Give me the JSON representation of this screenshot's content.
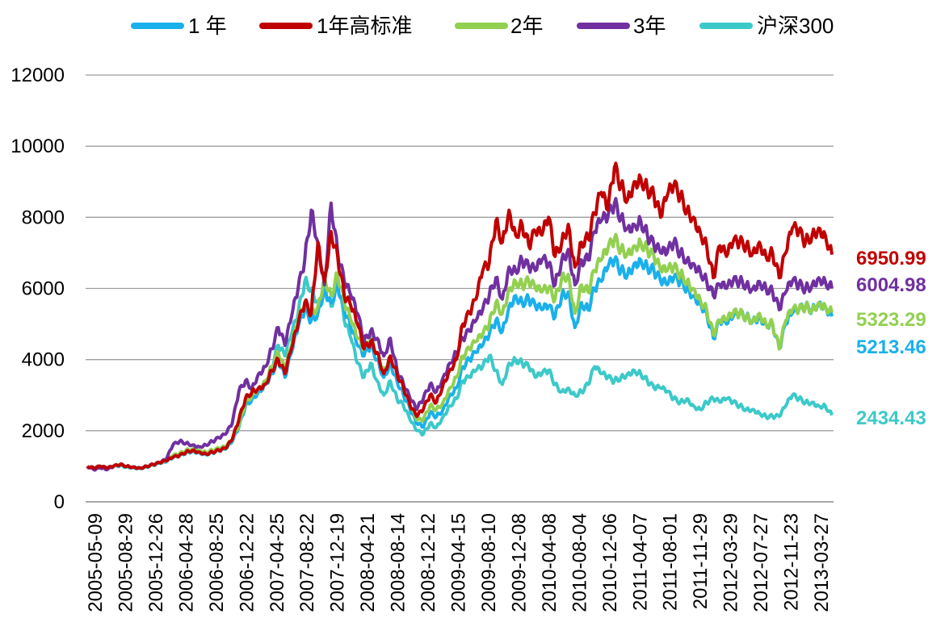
{
  "chart_data": {
    "type": "line",
    "title": "",
    "xlabel": "",
    "ylabel": "",
    "ylim": [
      0,
      12000
    ],
    "yticks": [
      "0",
      "2000",
      "4000",
      "6000",
      "8000",
      "10000",
      "12000"
    ],
    "grid": true,
    "legend_position": "top",
    "xticks": [
      "2005-05-09",
      "2005-08-29",
      "2005-12-26",
      "2006-04-28",
      "2006-08-25",
      "2006-12-22",
      "2007-04-25",
      "2007-08-22",
      "2007-12-19",
      "2008-04-21",
      "2008-08-14",
      "2008-12-12",
      "2009-04-15",
      "2009-08-10",
      "2009-12-08",
      "2010-04-08",
      "2010-08-04",
      "2010-12-06",
      "2011-04-07",
      "2011-08-01",
      "2011-11-29",
      "2012-03-29",
      "2012-07-27",
      "2012-11-23",
      "2013-03-27"
    ],
    "series": [
      {
        "name": "1 年",
        "color": "#1ab0ec",
        "end_label": "5213.46",
        "values": [
          1000,
          950,
          1000,
          950,
          1000,
          1050,
          1000,
          980,
          950,
          1000,
          1050,
          1100,
          1150,
          1250,
          1300,
          1400,
          1450,
          1400,
          1350,
          1400,
          1450,
          1500,
          1700,
          2100,
          2700,
          2900,
          3100,
          3300,
          3600,
          4000,
          3500,
          4200,
          4900,
          5400,
          5100,
          5300,
          6000,
          5600,
          6100,
          5400,
          4900,
          4400,
          4100,
          4400,
          4000,
          3500,
          3900,
          3400,
          3000,
          2600,
          2200,
          2100,
          2500,
          2400,
          2600,
          3000,
          3200,
          3800,
          4000,
          4200,
          4400,
          4700,
          5100,
          4800,
          5500,
          5800,
          5600,
          5700,
          5500,
          5400,
          5500,
          5200,
          5800,
          5900,
          4900,
          5600,
          5400,
          6000,
          6200,
          6600,
          6800,
          6500,
          6400,
          6700,
          6800,
          6600,
          6500,
          6200,
          6100,
          6300,
          6200,
          6000,
          5800,
          5600,
          5300,
          4600,
          5100,
          5000,
          5200,
          5300,
          5200,
          5100,
          5200,
          5000,
          5000,
          4300,
          5000,
          5300,
          5400,
          5500,
          5400,
          5600,
          5500,
          5213.46
        ]
      },
      {
        "name": "1年高标准",
        "color": "#c00000",
        "end_label": "6950.99",
        "values": [
          1000,
          950,
          1000,
          950,
          1000,
          1050,
          1000,
          980,
          950,
          1000,
          1050,
          1100,
          1150,
          1250,
          1300,
          1400,
          1450,
          1400,
          1350,
          1400,
          1450,
          1500,
          1750,
          2300,
          2900,
          3100,
          3200,
          3300,
          3700,
          4000,
          3600,
          4300,
          5000,
          5600,
          5300,
          7300,
          6200,
          7600,
          6900,
          5800,
          5500,
          5000,
          4300,
          4500,
          4200,
          3600,
          4100,
          3600,
          3200,
          2700,
          2400,
          2600,
          3000,
          2800,
          3300,
          3700,
          4000,
          5000,
          5300,
          5700,
          6500,
          6700,
          7900,
          7300,
          8200,
          7500,
          7800,
          7200,
          7600,
          7500,
          8000,
          6900,
          7300,
          7800,
          6600,
          7300,
          7400,
          8100,
          8700,
          8200,
          9400,
          8900,
          8500,
          9000,
          9100,
          8800,
          8600,
          8000,
          8600,
          8900,
          8600,
          8200,
          8000,
          7600,
          7200,
          6300,
          7200,
          6900,
          7300,
          7300,
          7200,
          7000,
          7300,
          6900,
          7000,
          6300,
          7000,
          7700,
          7600,
          7300,
          7500,
          7700,
          7500,
          6950.99
        ]
      },
      {
        "name": "2年",
        "color": "#92d050",
        "end_label": "5323.29",
        "values": [
          1000,
          950,
          1000,
          950,
          1000,
          1050,
          1000,
          980,
          950,
          1000,
          1050,
          1100,
          1150,
          1300,
          1350,
          1450,
          1500,
          1450,
          1400,
          1450,
          1500,
          1550,
          1750,
          2150,
          2800,
          3000,
          3200,
          3400,
          3800,
          4200,
          3700,
          4400,
          5100,
          5600,
          5300,
          5500,
          6300,
          5800,
          6400,
          5600,
          5100,
          4600,
          4300,
          4600,
          4200,
          3700,
          4100,
          3600,
          3200,
          2700,
          2300,
          2300,
          2700,
          2600,
          2800,
          3200,
          3500,
          4100,
          4300,
          4500,
          4700,
          5000,
          5600,
          5300,
          6000,
          6200,
          6100,
          6200,
          6000,
          5900,
          6000,
          5700,
          6300,
          6400,
          5300,
          6100,
          5900,
          6500,
          6800,
          7100,
          7400,
          7100,
          7000,
          7200,
          7300,
          7100,
          6900,
          6500,
          6500,
          6600,
          6400,
          6200,
          6000,
          5700,
          5400,
          4700,
          5100,
          5100,
          5300,
          5300,
          5200,
          5100,
          5300,
          5000,
          5000,
          4300,
          5100,
          5400,
          5400,
          5500,
          5400,
          5600,
          5500,
          5323.29
        ]
      },
      {
        "name": "3年",
        "color": "#7030a0",
        "end_label": "6004.98",
        "values": [
          1000,
          900,
          950,
          900,
          1000,
          1050,
          1000,
          980,
          950,
          1000,
          1050,
          1100,
          1200,
          1600,
          1700,
          1650,
          1600,
          1550,
          1600,
          1700,
          1800,
          1900,
          2200,
          3100,
          3400,
          3200,
          3600,
          3800,
          4300,
          4900,
          4400,
          5200,
          6000,
          6800,
          8200,
          7300,
          6100,
          8400,
          7000,
          6200,
          5800,
          5300,
          4500,
          4800,
          4600,
          4100,
          4600,
          3700,
          3300,
          2900,
          2600,
          2900,
          3300,
          3100,
          3500,
          3900,
          4200,
          4600,
          4800,
          5100,
          5400,
          5800,
          6300,
          5700,
          6600,
          6500,
          6800,
          6600,
          6500,
          6800,
          6700,
          6100,
          6800,
          7100,
          6100,
          6800,
          6800,
          7600,
          7900,
          8000,
          8400,
          8000,
          7700,
          7800,
          7900,
          7500,
          7200,
          7000,
          7000,
          7300,
          7000,
          6800,
          6700,
          6500,
          6200,
          5800,
          6100,
          6000,
          6200,
          6200,
          6100,
          6000,
          6200,
          6000,
          5900,
          5400,
          5900,
          6200,
          6100,
          6000,
          6100,
          6300,
          6200,
          6004.98
        ]
      },
      {
        "name": "沪深300",
        "color": "#3cc9c9",
        "end_label": "2434.43",
        "values": [
          1000,
          950,
          980,
          940,
          1000,
          1020,
          980,
          960,
          940,
          980,
          1030,
          1080,
          1120,
          1250,
          1300,
          1380,
          1420,
          1380,
          1330,
          1380,
          1430,
          1480,
          1700,
          2100,
          2700,
          2900,
          3100,
          3300,
          3800,
          4400,
          4100,
          4700,
          5300,
          6200,
          6000,
          5600,
          6000,
          5500,
          6200,
          5100,
          4600,
          3900,
          3500,
          3900,
          3400,
          3000,
          3400,
          2900,
          2700,
          2300,
          2000,
          1900,
          2200,
          2100,
          2400,
          2700,
          2900,
          3400,
          3500,
          3700,
          3800,
          4100,
          3700,
          3300,
          3900,
          4000,
          3900,
          3800,
          3500,
          3600,
          3700,
          3300,
          3100,
          3200,
          3000,
          3100,
          3300,
          3800,
          3600,
          3500,
          3400,
          3500,
          3600,
          3700,
          3600,
          3400,
          3200,
          3200,
          3100,
          2900,
          2800,
          2900,
          2700,
          2600,
          2800,
          2900,
          2800,
          2900,
          2800,
          2700,
          2600,
          2600,
          2500,
          2400,
          2400,
          2400,
          2700,
          3000,
          2900,
          2800,
          2800,
          2700,
          2700,
          2434.43
        ]
      }
    ]
  }
}
